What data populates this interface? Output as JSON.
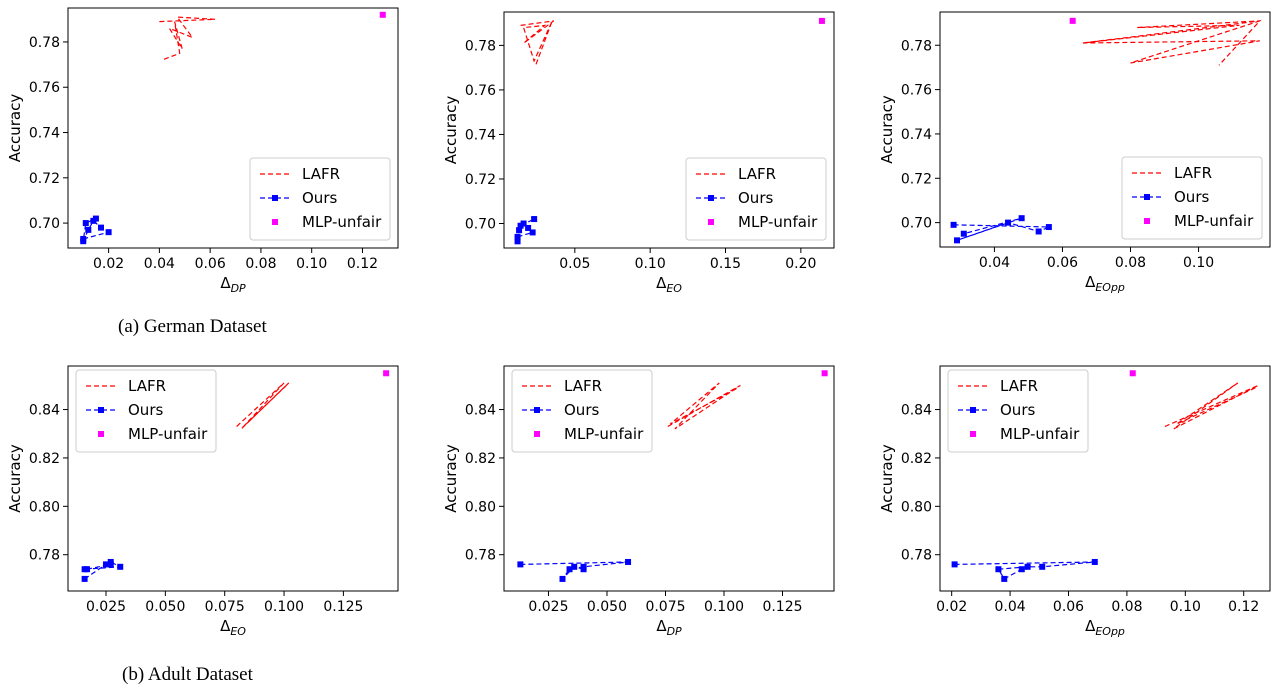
{
  "captions": {
    "german": "(a) German Dataset",
    "adult": "(b) Adult Dataset"
  },
  "colors": {
    "lafr": "#ff0000",
    "ours": "#0000ff",
    "mlp": "#ff00ff"
  },
  "chart_data": [
    {
      "type": "line",
      "xlabel": "Δ",
      "xlabel_sub": "DP",
      "ylabel": "Accuracy",
      "xlim": [
        0.004,
        0.134
      ],
      "ylim": [
        0.689,
        0.795
      ],
      "xticks": [
        "0.02",
        "0.04",
        "0.06",
        "0.08",
        "0.10",
        "0.12"
      ],
      "xtick_values": [
        0.02,
        0.04,
        0.06,
        0.08,
        0.1,
        0.12
      ],
      "yticks": [
        "0.70",
        "0.72",
        "0.74",
        "0.76",
        "0.78"
      ],
      "ytick_values": [
        0.7,
        0.72,
        0.74,
        0.76,
        0.78
      ],
      "legend_position": "lower-right",
      "series": [
        {
          "name": "LAFR",
          "style": "dashed",
          "x": [
            0.04,
            0.062,
            0.047,
            0.053,
            0.044,
            0.049,
            0.046,
            0.048,
            0.041
          ],
          "y": [
            0.789,
            0.79,
            0.791,
            0.782,
            0.786,
            0.777,
            0.789,
            0.775,
            0.772
          ]
        },
        {
          "name": "Ours",
          "style": "dashed-square",
          "x": [
            0.01,
            0.02,
            0.017,
            0.014,
            0.012,
            0.01,
            0.011,
            0.015
          ],
          "y": [
            0.693,
            0.696,
            0.698,
            0.701,
            0.697,
            0.692,
            0.7,
            0.702
          ]
        },
        {
          "name": "MLP-unfair",
          "style": "square",
          "x": [
            0.128
          ],
          "y": [
            0.792
          ]
        }
      ]
    },
    {
      "type": "line",
      "xlabel": "Δ",
      "xlabel_sub": "EO",
      "ylabel": "Accuracy",
      "xlim": [
        0.003,
        0.222
      ],
      "ylim": [
        0.689,
        0.795
      ],
      "xticks": [
        "0.05",
        "0.10",
        "0.15",
        "0.20"
      ],
      "xtick_values": [
        0.05,
        0.1,
        0.15,
        0.2
      ],
      "yticks": [
        "0.70",
        "0.72",
        "0.74",
        "0.76",
        "0.78"
      ],
      "ytick_values": [
        0.7,
        0.72,
        0.74,
        0.76,
        0.78
      ],
      "legend_position": "lower-right",
      "series": [
        {
          "name": "LAFR",
          "style": "dashed",
          "x": [
            0.014,
            0.036,
            0.016,
            0.03,
            0.016,
            0.023,
            0.035,
            0.024
          ],
          "y": [
            0.789,
            0.791,
            0.781,
            0.789,
            0.788,
            0.773,
            0.791,
            0.771
          ]
        },
        {
          "name": "Ours",
          "style": "dashed-square",
          "x": [
            0.012,
            0.022,
            0.019,
            0.016,
            0.013,
            0.012,
            0.014,
            0.023
          ],
          "y": [
            0.694,
            0.696,
            0.698,
            0.7,
            0.697,
            0.692,
            0.699,
            0.702
          ]
        },
        {
          "name": "MLP-unfair",
          "style": "square",
          "x": [
            0.214
          ],
          "y": [
            0.791
          ]
        }
      ]
    },
    {
      "type": "line",
      "xlabel": "Δ",
      "xlabel_sub": "EOpp",
      "ylabel": "Accuracy",
      "xlim": [
        0.024,
        0.121
      ],
      "ylim": [
        0.689,
        0.795
      ],
      "xticks": [
        "0.04",
        "0.06",
        "0.08",
        "0.10"
      ],
      "xtick_values": [
        0.04,
        0.06,
        0.08,
        0.1
      ],
      "yticks": [
        "0.70",
        "0.72",
        "0.74",
        "0.76",
        "0.78"
      ],
      "ytick_values": [
        0.7,
        0.72,
        0.74,
        0.76,
        0.78
      ],
      "legend_position": "lower-right",
      "series": [
        {
          "name": "LAFR",
          "style": "dashed",
          "x": [
            0.066,
            0.118,
            0.082,
            0.112,
            0.066,
            0.118,
            0.08,
            0.118,
            0.106
          ],
          "y": [
            0.781,
            0.791,
            0.788,
            0.789,
            0.781,
            0.782,
            0.772,
            0.791,
            0.771
          ]
        },
        {
          "name": "Ours",
          "style": "dashed-square",
          "x": [
            0.028,
            0.056,
            0.053,
            0.044,
            0.029,
            0.048,
            0.031
          ],
          "y": [
            0.699,
            0.698,
            0.696,
            0.7,
            0.692,
            0.702,
            0.695
          ]
        },
        {
          "name": "MLP-unfair",
          "style": "square",
          "x": [
            0.063
          ],
          "y": [
            0.791
          ]
        }
      ]
    },
    {
      "type": "line",
      "xlabel": "Δ",
      "xlabel_sub": "EO",
      "ylabel": "Accuracy",
      "xlim": [
        0.009,
        0.148
      ],
      "ylim": [
        0.765,
        0.858
      ],
      "xticks": [
        "0.025",
        "0.050",
        "0.075",
        "0.100",
        "0.125"
      ],
      "xtick_values": [
        0.025,
        0.05,
        0.075,
        0.1,
        0.125
      ],
      "yticks": [
        "0.78",
        "0.80",
        "0.82",
        "0.84"
      ],
      "ytick_values": [
        0.78,
        0.8,
        0.82,
        0.84
      ],
      "legend_position": "upper-left",
      "series": [
        {
          "name": "LAFR",
          "style": "dashed",
          "x": [
            0.08,
            0.1,
            0.082,
            0.102,
            0.084,
            0.101
          ],
          "y": [
            0.833,
            0.851,
            0.832,
            0.851,
            0.834,
            0.85
          ]
        },
        {
          "name": "Ours",
          "style": "dashed-square",
          "x": [
            0.016,
            0.025,
            0.027,
            0.031,
            0.016,
            0.017,
            0.027
          ],
          "y": [
            0.77,
            0.776,
            0.777,
            0.775,
            0.774,
            0.774,
            0.776
          ]
        },
        {
          "name": "MLP-unfair",
          "style": "square",
          "x": [
            0.143
          ],
          "y": [
            0.855
          ]
        }
      ]
    },
    {
      "type": "line",
      "xlabel": "Δ",
      "xlabel_sub": "DP",
      "ylabel": "Accuracy",
      "xlim": [
        0.006,
        0.147
      ],
      "ylim": [
        0.765,
        0.858
      ],
      "xticks": [
        "0.025",
        "0.050",
        "0.075",
        "0.100",
        "0.125"
      ],
      "xtick_values": [
        0.025,
        0.05,
        0.075,
        0.1,
        0.125
      ],
      "yticks": [
        "0.78",
        "0.80",
        "0.82",
        "0.84"
      ],
      "ytick_values": [
        0.78,
        0.8,
        0.82,
        0.84
      ],
      "legend_position": "upper-left",
      "series": [
        {
          "name": "LAFR",
          "style": "dashed",
          "x": [
            0.076,
            0.107,
            0.079,
            0.098,
            0.077,
            0.106
          ],
          "y": [
            0.833,
            0.85,
            0.832,
            0.851,
            0.834,
            0.849
          ]
        },
        {
          "name": "Ours",
          "style": "dashed-square",
          "x": [
            0.013,
            0.059,
            0.04,
            0.034,
            0.031,
            0.036,
            0.04
          ],
          "y": [
            0.776,
            0.777,
            0.775,
            0.774,
            0.77,
            0.775,
            0.774
          ]
        },
        {
          "name": "MLP-unfair",
          "style": "square",
          "x": [
            0.143
          ],
          "y": [
            0.855
          ]
        }
      ]
    },
    {
      "type": "line",
      "xlabel": "Δ",
      "xlabel_sub": "EOpp",
      "ylabel": "Accuracy",
      "xlim": [
        0.016,
        0.129
      ],
      "ylim": [
        0.765,
        0.858
      ],
      "xticks": [
        "0.02",
        "0.04",
        "0.06",
        "0.08",
        "0.10",
        "0.12"
      ],
      "xtick_values": [
        0.02,
        0.04,
        0.06,
        0.08,
        0.1,
        0.12
      ],
      "yticks": [
        "0.78",
        "0.80",
        "0.82",
        "0.84"
      ],
      "ytick_values": [
        0.78,
        0.8,
        0.82,
        0.84
      ],
      "legend_position": "upper-left",
      "series": [
        {
          "name": "LAFR",
          "style": "dashed",
          "x": [
            0.093,
            0.125,
            0.096,
            0.118,
            0.097,
            0.124
          ],
          "y": [
            0.833,
            0.85,
            0.832,
            0.851,
            0.834,
            0.849
          ]
        },
        {
          "name": "Ours",
          "style": "dashed-square",
          "x": [
            0.021,
            0.069,
            0.051,
            0.046,
            0.036,
            0.038,
            0.044
          ],
          "y": [
            0.776,
            0.777,
            0.775,
            0.775,
            0.774,
            0.77,
            0.774
          ]
        },
        {
          "name": "MLP-unfair",
          "style": "square",
          "x": [
            0.082
          ],
          "y": [
            0.855
          ]
        }
      ]
    }
  ]
}
